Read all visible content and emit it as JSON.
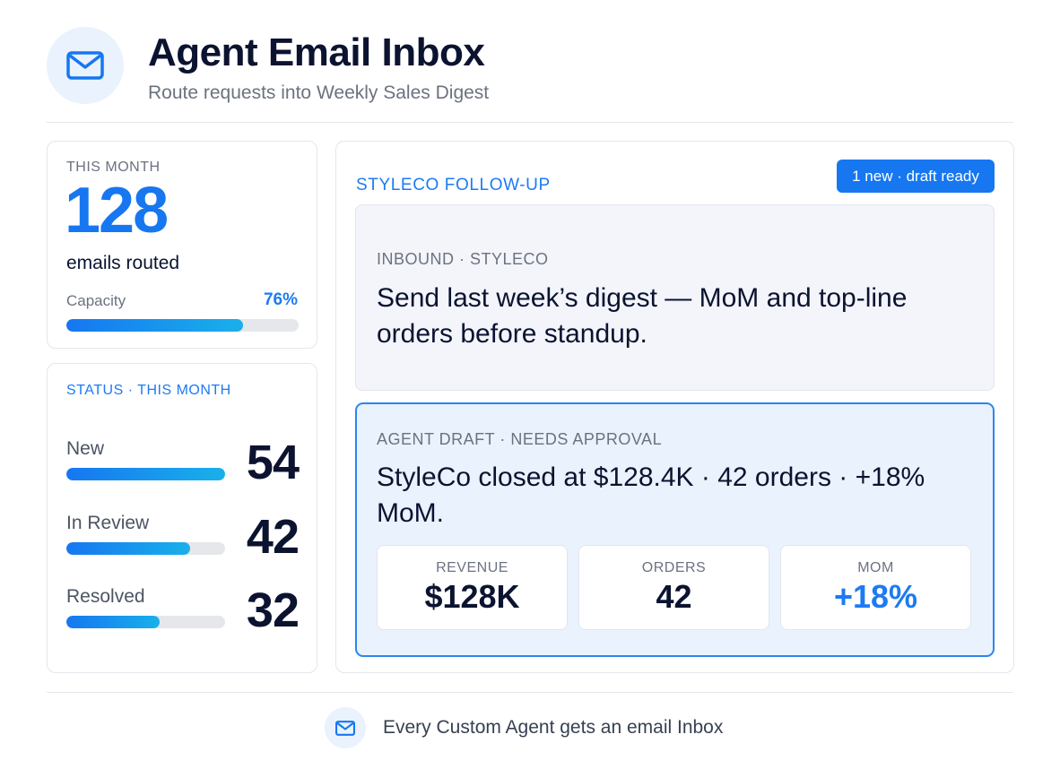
{
  "header": {
    "icon": "envelope-icon",
    "title": "Agent Email Inbox",
    "subtitle": "Route requests into Weekly Sales Digest"
  },
  "month_card": {
    "label": "THIS MONTH",
    "value": "128",
    "caption": "emails routed",
    "capacity_label": "Capacity",
    "capacity_pct": "76%",
    "capacity_fraction": 0.76
  },
  "status_card": {
    "label": "STATUS · THIS MONTH",
    "rows": [
      {
        "name": "New",
        "count": "54",
        "fraction": 1.0
      },
      {
        "name": "In Review",
        "count": "42",
        "fraction": 0.78
      },
      {
        "name": "Resolved",
        "count": "32",
        "fraction": 0.59
      }
    ]
  },
  "thread": {
    "title": "STYLECO FOLLOW-UP",
    "badge": "1 new · draft ready",
    "inbound": {
      "label": "INBOUND · STYLECO",
      "text": "Send last week’s digest — MoM and top-line orders before standup."
    },
    "draft": {
      "label": "AGENT DRAFT · NEEDS APPROVAL",
      "text": "StyleCo closed at $128.4K · 42 orders · +18% MoM.",
      "stats": [
        {
          "label": "REVENUE",
          "value": "$128K"
        },
        {
          "label": "ORDERS",
          "value": "42"
        },
        {
          "label": "MOM",
          "value": "+18%"
        }
      ]
    }
  },
  "footer": {
    "icon": "envelope-icon",
    "text": "Every Custom Agent gets an email Inbox"
  },
  "colors": {
    "accent": "#1677f0",
    "accent_light": "#eaf2fd",
    "title": "#0b1330",
    "muted": "#6b7280"
  }
}
